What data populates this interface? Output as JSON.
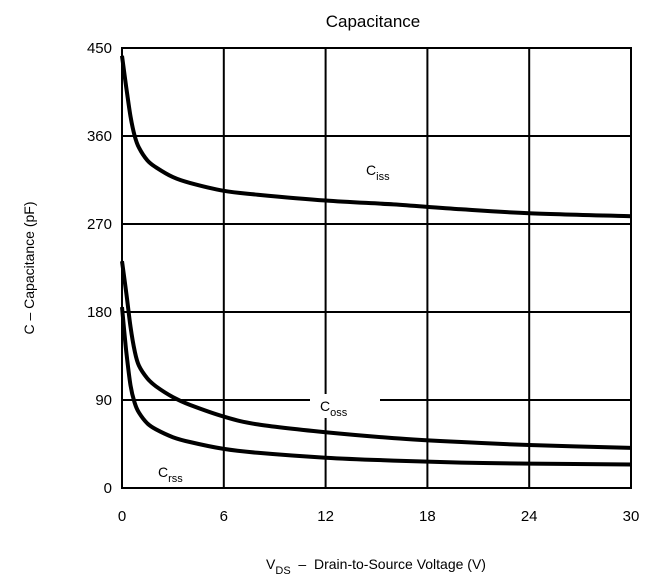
{
  "chart_data": {
    "type": "line",
    "title": "Capacitance",
    "xlabel": {
      "prefix": "V",
      "sub": "DS",
      "text": "  –  Drain-to-Source Voltage (V)"
    },
    "ylabel": "C  –  Capacitance (pF)",
    "xlim": [
      0,
      30
    ],
    "ylim": [
      0,
      450
    ],
    "xticks": [
      0,
      6,
      12,
      18,
      24,
      30
    ],
    "yticks": [
      0,
      90,
      180,
      270,
      360,
      450
    ],
    "grid": true,
    "series": [
      {
        "name": "Ciss",
        "label": {
          "main": "C",
          "sub": "iss"
        },
        "x": [
          0,
          0.25,
          0.5,
          0.75,
          1,
          1.5,
          2,
          3,
          4,
          6,
          8,
          12,
          16,
          20,
          24,
          30
        ],
        "y": [
          442,
          410,
          380,
          360,
          348,
          335,
          328,
          318,
          312,
          304,
          300,
          294,
          290,
          285,
          281,
          278
        ]
      },
      {
        "name": "Coss",
        "label": {
          "main": "C",
          "sub": "oss"
        },
        "x": [
          0,
          0.25,
          0.5,
          0.75,
          1,
          1.5,
          2,
          3,
          4,
          6,
          8,
          12,
          16,
          20,
          24,
          30
        ],
        "y": [
          232,
          200,
          165,
          140,
          125,
          112,
          104,
          93,
          85,
          73,
          65,
          57,
          51,
          47,
          44,
          41
        ]
      },
      {
        "name": "Crss",
        "label": {
          "main": "C",
          "sub": "rss"
        },
        "x": [
          0,
          0.25,
          0.5,
          0.75,
          1,
          1.5,
          2,
          3,
          4,
          6,
          8,
          12,
          16,
          20,
          24,
          30
        ],
        "y": [
          185,
          140,
          105,
          87,
          77,
          66,
          60,
          52,
          47,
          40,
          36,
          31,
          28,
          26,
          25,
          24
        ]
      }
    ]
  }
}
